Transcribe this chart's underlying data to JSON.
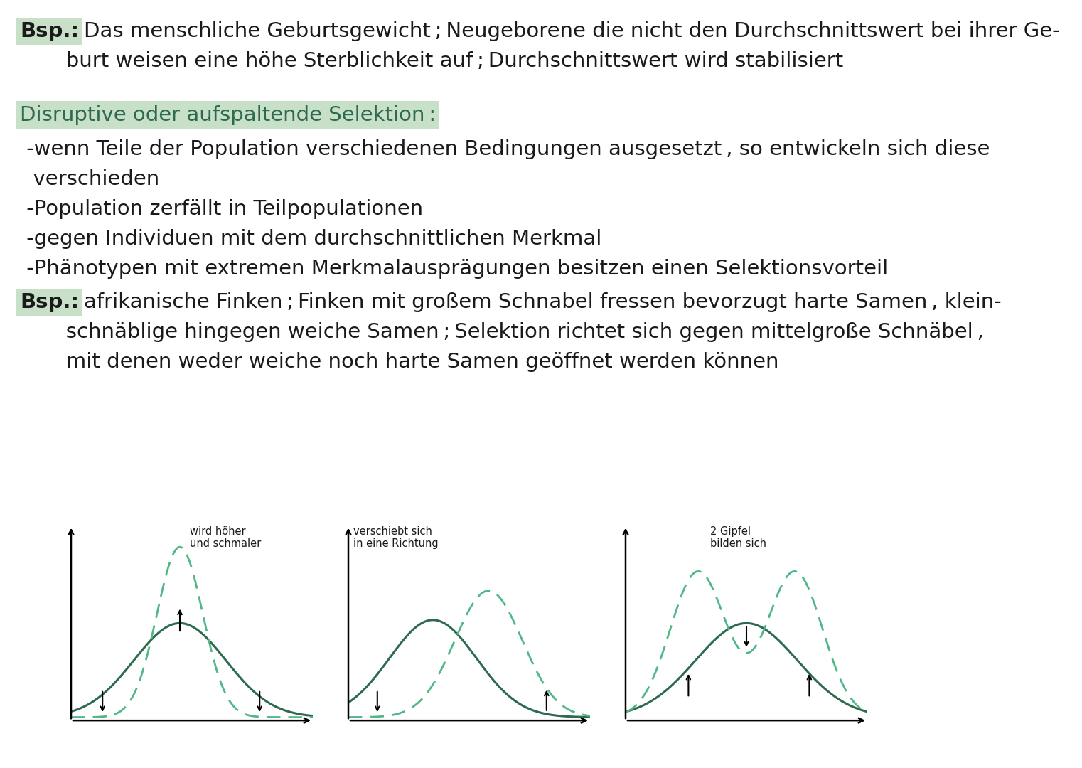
{
  "bg_color": "#ffffff",
  "text_color": "#1a1a1a",
  "green_dark": "#2d6a4f",
  "green_dashed": "#52b788",
  "highlight_bg": "#c8dfc8",
  "diagram1_label": "wird höher\nund schmaler",
  "diagram2_label": "verschiebt sich\nin eine Richtung",
  "diagram3_label": "2 Gipfel\nbilden sich"
}
